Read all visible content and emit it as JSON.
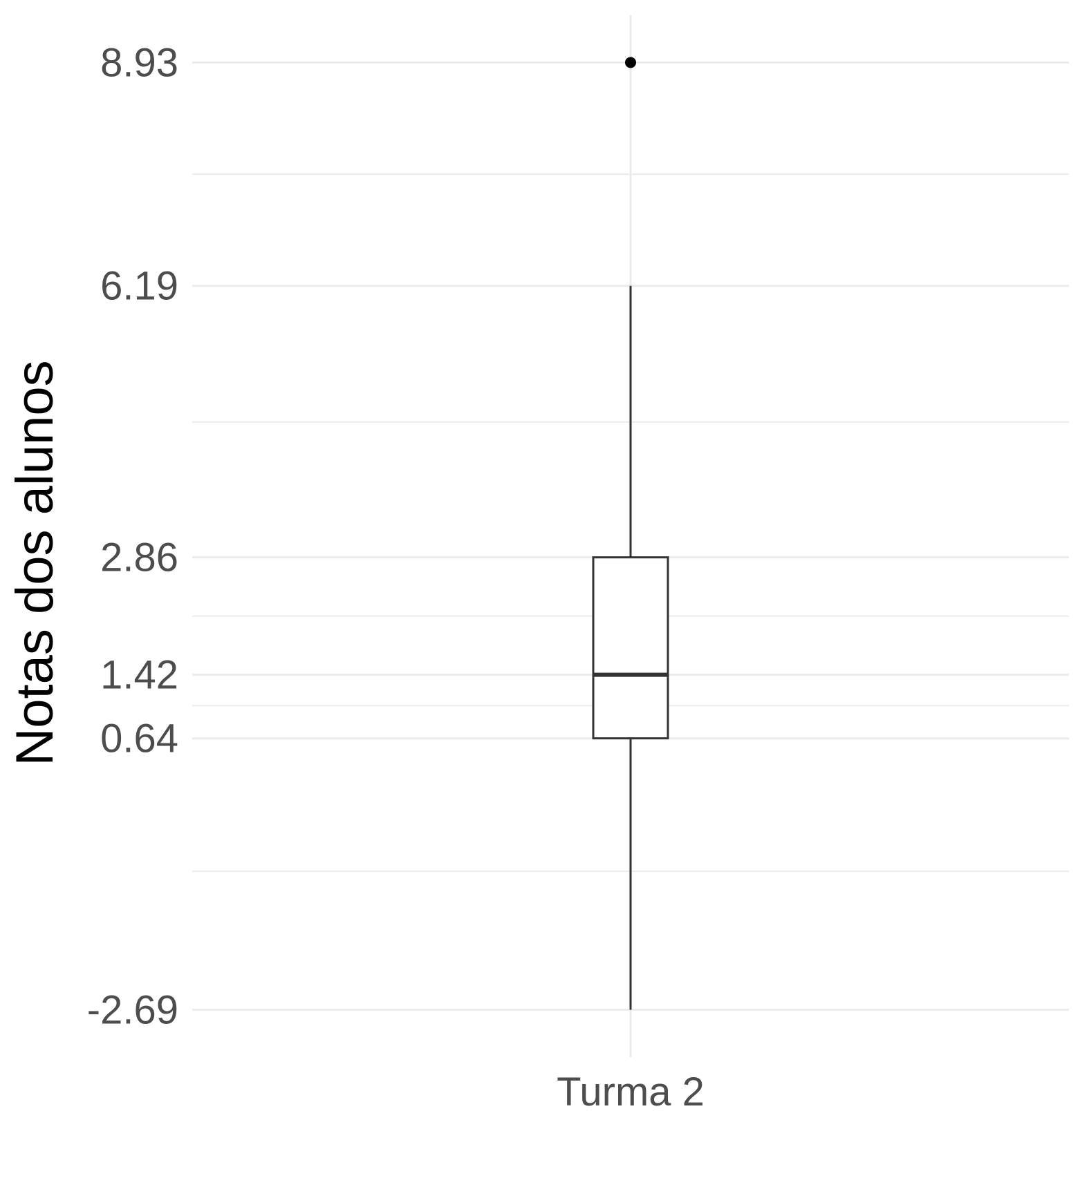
{
  "chart_data": {
    "type": "boxplot",
    "title": "",
    "xlabel": "",
    "ylabel": "Notas dos alunos",
    "categories": [
      "Turma 2"
    ],
    "series": [
      {
        "category": "Turma 2",
        "min": -2.69,
        "q1": 0.64,
        "median": 1.42,
        "q3": 2.86,
        "max": 6.19,
        "outliers": [
          8.93
        ]
      }
    ],
    "y_ticks": [
      -2.69,
      0.64,
      1.42,
      2.86,
      6.19,
      8.93
    ],
    "y_tick_labels": [
      "-2.69",
      "0.64",
      "1.42",
      "2.86",
      "6.19",
      "8.93"
    ],
    "y_minor_gridlines": [
      -0.99,
      1.04,
      2.14,
      4.52,
      7.56
    ],
    "ylim": [
      -3.27,
      9.51
    ],
    "grid": true,
    "legend": "none",
    "colors": {
      "box_line": "#333333",
      "box_fill": "#ffffff",
      "outlier": "#000000",
      "grid": "#ebebeb",
      "tick_text": "#4d4d4d"
    }
  }
}
